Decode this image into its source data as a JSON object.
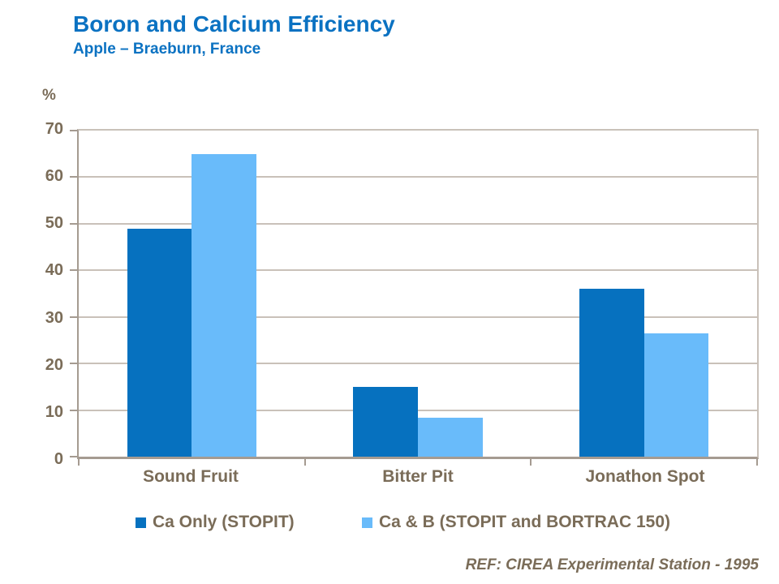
{
  "header": {
    "title": "Boron and Calcium Efficiency",
    "subtitle": "Apple – Braeburn, France"
  },
  "chart_data": {
    "type": "bar",
    "title": "Boron and Calcium Efficiency",
    "subtitle": "Apple – Braeburn, France",
    "unit_label": "%",
    "categories": [
      "Sound Fruit",
      "Bitter Pit",
      "Jonathon Spot"
    ],
    "series": [
      {
        "name": "Ca Only (STOPIT)",
        "color": "#0671BF",
        "values": [
          49,
          15,
          36
        ]
      },
      {
        "name": "Ca & B (STOPIT and BORTRAC 150)",
        "color": "#69BBFA",
        "values": [
          65,
          8.4,
          26.4
        ]
      }
    ],
    "ylabel": "%",
    "xlabel": "",
    "ylim": [
      0,
      70
    ],
    "yticks": [
      70,
      60,
      50,
      40,
      30,
      20,
      10,
      0
    ],
    "grid": true,
    "legend_position": "bottom"
  },
  "footer": {
    "ref": "REF: CIREA Experimental Station - 1995"
  },
  "colors": {
    "bar_dark_blue": "#0671BF",
    "bar_light_blue": "#69BBFA",
    "title_blue": "#0B72C2",
    "text_taupe": "#7A6C58",
    "gridline": "#C9C1B9",
    "axis": "#A59B91"
  }
}
